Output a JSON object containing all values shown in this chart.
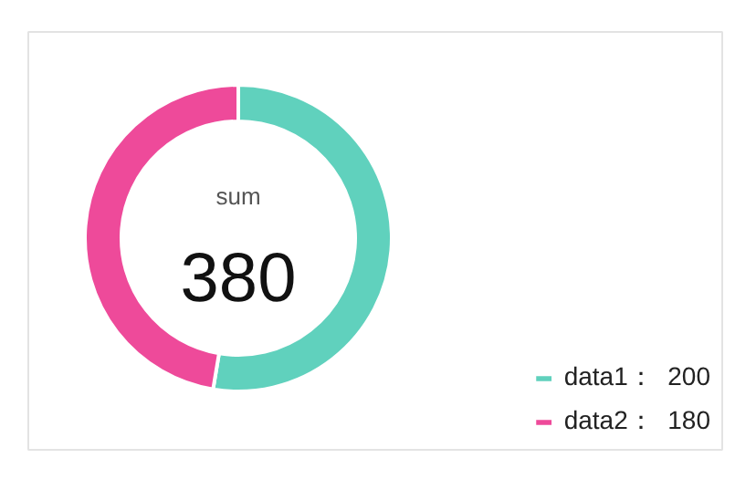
{
  "chart_data": {
    "type": "donut",
    "title": "sum",
    "subtitle": "380",
    "categories": [
      "data1",
      "data2"
    ],
    "values": [
      200,
      180
    ],
    "value_labels": [
      "200",
      "180"
    ],
    "colors": [
      "#60d1bd",
      "#ee4a9a"
    ],
    "legend": "bottom right"
  }
}
